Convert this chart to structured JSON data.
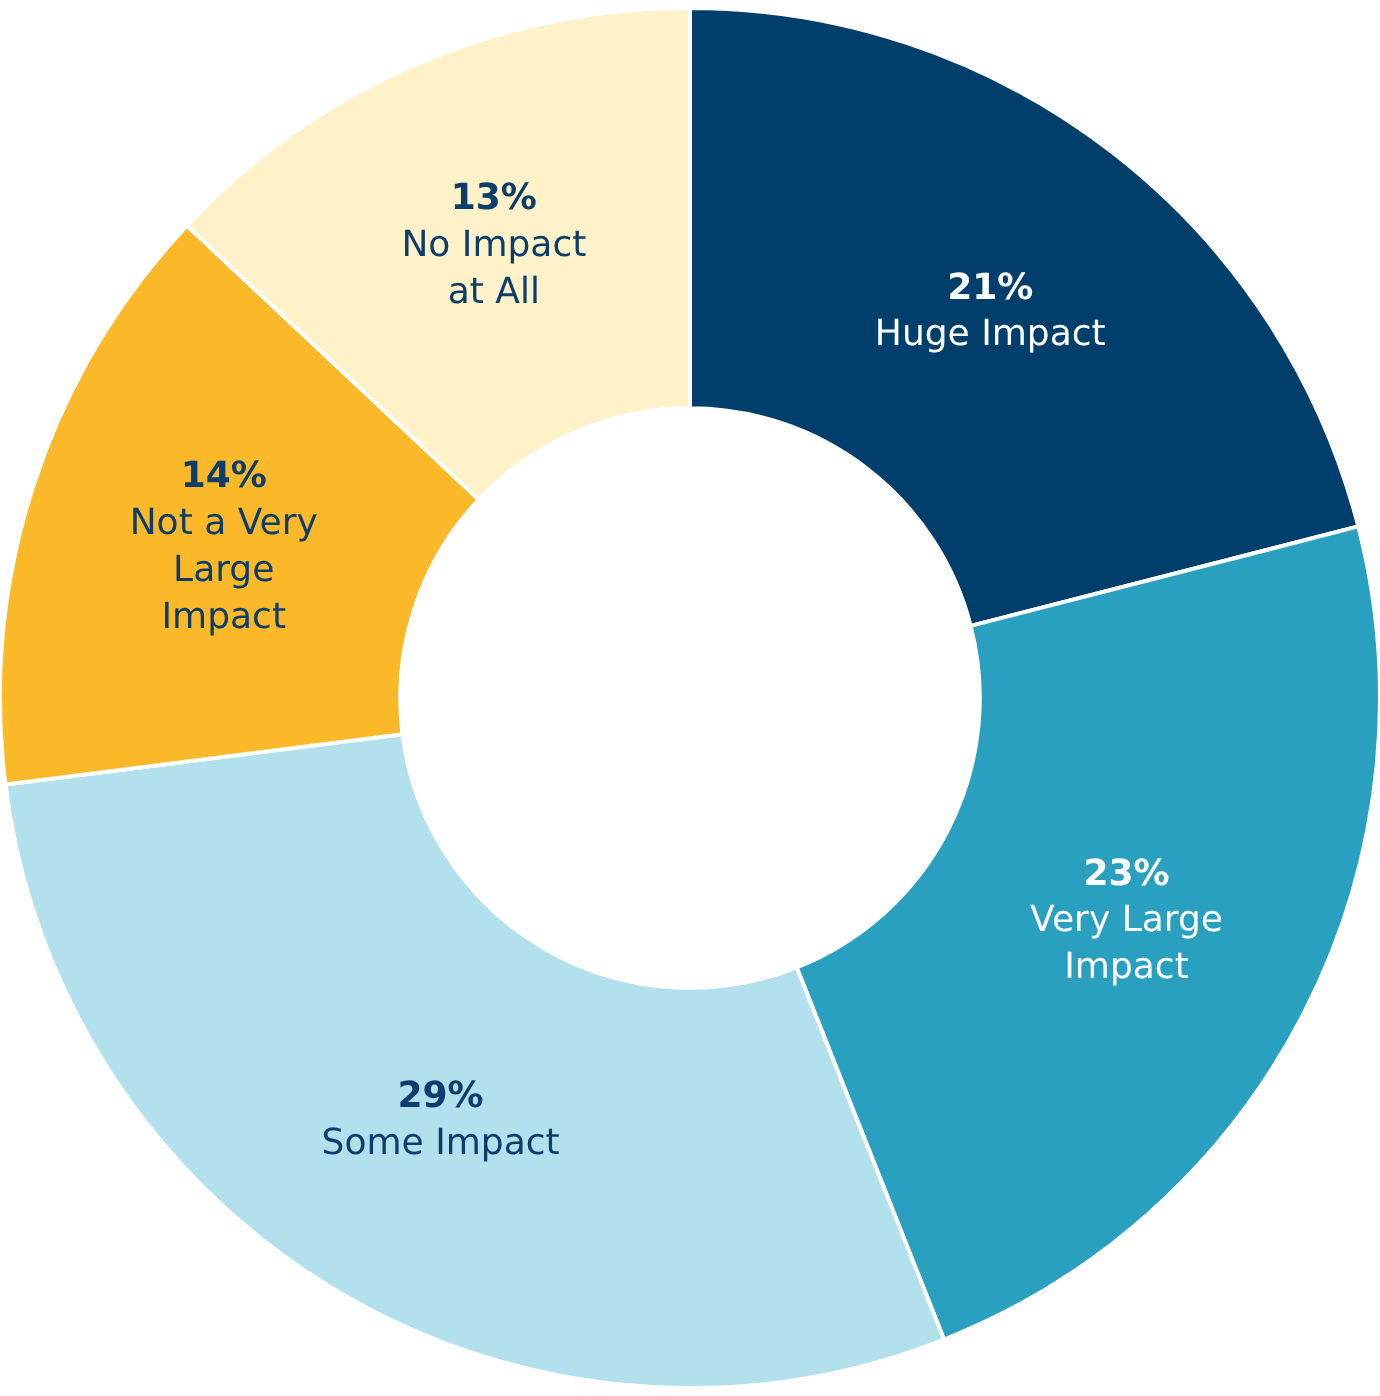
{
  "chart_data": {
    "type": "donut",
    "categories": [
      "Huge Impact",
      "Very Large Impact",
      "Some Impact",
      "Not a Very Large Impact",
      "No Impact at All"
    ],
    "values": [
      21,
      23,
      29,
      14,
      13
    ],
    "value_labels": [
      "21%",
      "23%",
      "29%",
      "14%",
      "13%"
    ],
    "colors": [
      "#003f6b",
      "#2aa0c0",
      "#b2e0ec",
      "#fbb829",
      "#fff1c8"
    ],
    "legend": false
  }
}
